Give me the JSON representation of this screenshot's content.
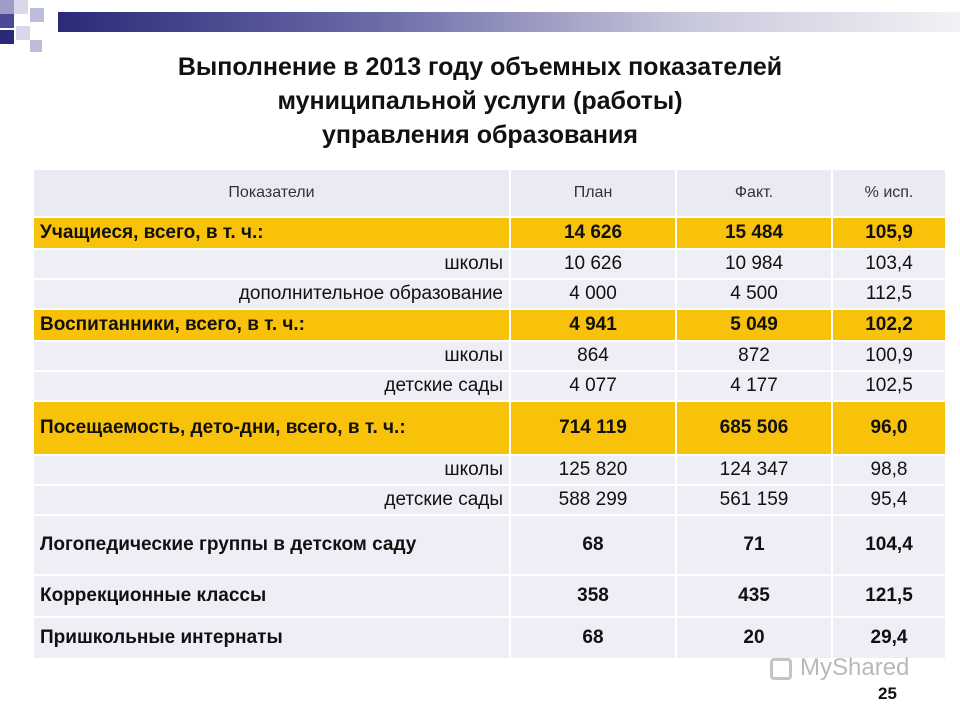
{
  "slide": {
    "title_lines": [
      "Выполнение в 2013 году объемных показателей",
      "муниципальной услуги (работы)",
      "управления образования"
    ],
    "page_number": "25",
    "watermark": "MyShared"
  },
  "colors": {
    "highlight": "#f8c10a",
    "row_bg": "#eeeef6",
    "header_bg": "#eaeaf2",
    "bar_dark": "#2a2a7a"
  },
  "table": {
    "headers": [
      "Показатели",
      "План",
      "Факт.",
      "% исп."
    ],
    "rows": [
      {
        "label": "Учащиеся, всего, в т. ч.:",
        "plan": "14 626",
        "fact": "15 484",
        "pct": "105,9"
      },
      {
        "label": "школы",
        "plan": "10 626",
        "fact": "10 984",
        "pct": "103,4"
      },
      {
        "label": "дополнительное образование",
        "plan": "4 000",
        "fact": "4 500",
        "pct": "112,5"
      },
      {
        "label": "Воспитанники, всего, в т. ч.:",
        "plan": "4 941",
        "fact": "5 049",
        "pct": "102,2"
      },
      {
        "label": "школы",
        "plan": "864",
        "fact": "872",
        "pct": "100,9"
      },
      {
        "label": "детские сады",
        "plan": "4 077",
        "fact": "4 177",
        "pct": "102,5"
      },
      {
        "label": "Посещаемость, дето-дни, всего, в т. ч.:",
        "plan": "714 119",
        "fact": "685 506",
        "pct": "96,0"
      },
      {
        "label": "школы",
        "plan": "125 820",
        "fact": "124 347",
        "pct": "98,8"
      },
      {
        "label": "детские сады",
        "plan": "588 299",
        "fact": "561 159",
        "pct": "95,4"
      },
      {
        "label": "Логопедические группы в детском саду",
        "plan": "68",
        "fact": "71",
        "pct": "104,4"
      },
      {
        "label": "Коррекционные классы",
        "plan": "358",
        "fact": "435",
        "pct": "121,5"
      },
      {
        "label": "Пришкольные интернаты",
        "plan": "68",
        "fact": "20",
        "pct": "29,4"
      }
    ]
  }
}
